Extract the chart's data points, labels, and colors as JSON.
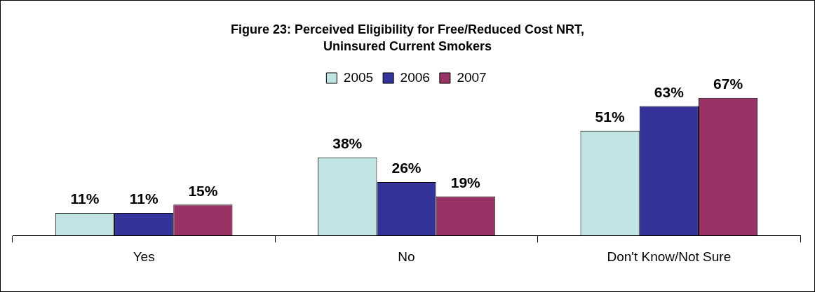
{
  "chart_data": {
    "type": "bar",
    "title": "Figure 23: Perceived Eligibility for Free/Reduced Cost NRT, Uninsured Current Smokers",
    "categories": [
      "Yes",
      "No",
      "Don't Know/Not Sure"
    ],
    "series": [
      {
        "name": "2005",
        "color": "#c0e4e4",
        "values": [
          11,
          38,
          51
        ],
        "value_labels": [
          "11%",
          "38%",
          "51%"
        ]
      },
      {
        "name": "2006",
        "color": "#333399",
        "values": [
          11,
          26,
          63
        ],
        "value_labels": [
          "11%",
          "26%",
          "63%"
        ]
      },
      {
        "name": "2007",
        "color": "#993366",
        "values": [
          15,
          19,
          67
        ],
        "value_labels": [
          "15%",
          "19%",
          "67%"
        ]
      }
    ],
    "legend": "top",
    "grid": false
  }
}
